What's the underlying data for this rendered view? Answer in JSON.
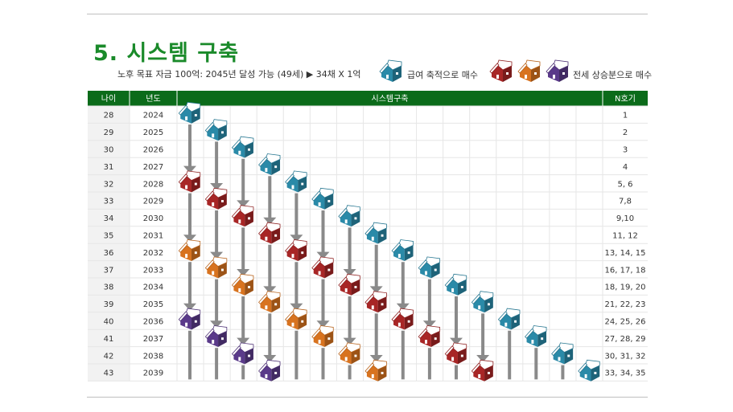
{
  "title": "5. 시스템 구축",
  "subtitle": "노후 목표 자금 100억: 2045년 달성 가능 (49세) ▶ 34채 X 1억",
  "legend": {
    "salary_label": "급여 축적으로 매수",
    "jeonse_label": "전세 상승분으로 매수"
  },
  "table": {
    "headers": {
      "age": "나이",
      "year": "년도",
      "system": "시스템구축",
      "house_no": "N호기"
    },
    "rows": [
      {
        "age": "28",
        "year": "2024",
        "house_no": "1"
      },
      {
        "age": "29",
        "year": "2025",
        "house_no": "2"
      },
      {
        "age": "30",
        "year": "2026",
        "house_no": "3"
      },
      {
        "age": "31",
        "year": "2027",
        "house_no": "4"
      },
      {
        "age": "32",
        "year": "2028",
        "house_no": "5, 6"
      },
      {
        "age": "33",
        "year": "2029",
        "house_no": "7,8"
      },
      {
        "age": "34",
        "year": "2030",
        "house_no": "9,10"
      },
      {
        "age": "35",
        "year": "2031",
        "house_no": "11, 12"
      },
      {
        "age": "36",
        "year": "2032",
        "house_no": "13, 14, 15"
      },
      {
        "age": "37",
        "year": "2033",
        "house_no": "16, 17, 18"
      },
      {
        "age": "38",
        "year": "2034",
        "house_no": "18, 19, 20"
      },
      {
        "age": "39",
        "year": "2035",
        "house_no": "21, 22, 23"
      },
      {
        "age": "40",
        "year": "2036",
        "house_no": "24, 25, 26"
      },
      {
        "age": "41",
        "year": "2037",
        "house_no": "27, 28, 29"
      },
      {
        "age": "42",
        "year": "2038",
        "house_no": "30, 31, 32"
      },
      {
        "age": "43",
        "year": "2039",
        "house_no": "33, 34, 35"
      }
    ]
  },
  "colors": {
    "header_green": "#0b6b1a",
    "title_green": "#1a8a2a",
    "teal": "#2a8aa8",
    "red": "#a82626",
    "orange": "#d8731f",
    "purple": "#5a3a8a",
    "arrow": "#8a8a8a"
  }
}
